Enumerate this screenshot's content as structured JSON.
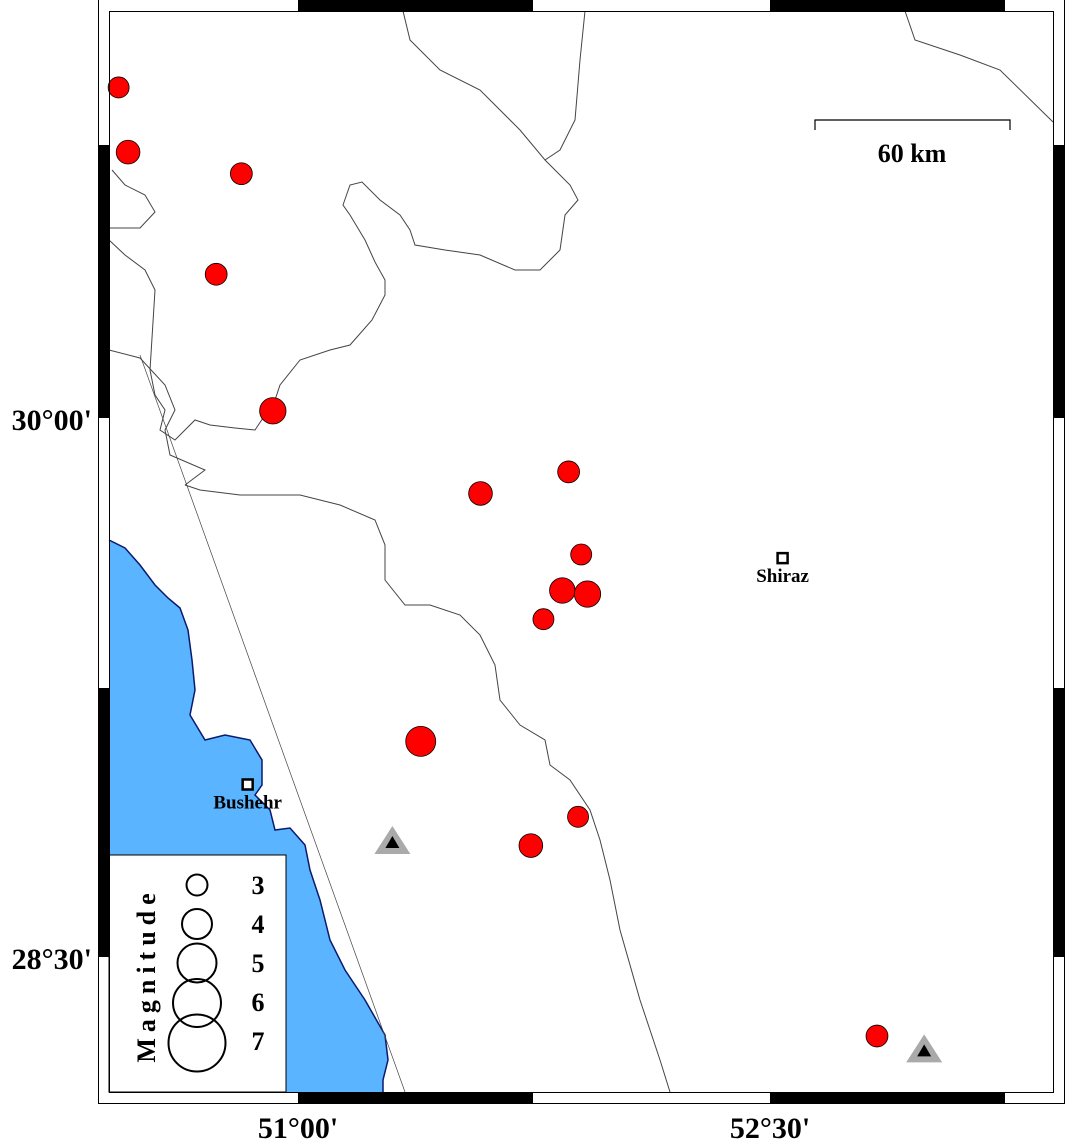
{
  "map": {
    "colors": {
      "sea": "#5ab4ff",
      "coast": "#0a1a6e",
      "event": "#ff0000",
      "station_outer": "#aaaaaa",
      "station_inner": "#000000",
      "border": "#444444"
    },
    "axis": {
      "lon_labels": [
        "51°00'",
        "52°30'"
      ],
      "lat_labels": [
        "30°00'",
        "28°30'"
      ]
    },
    "scale_bar": {
      "label": "60 km"
    },
    "cities": [
      {
        "name": "Shiraz",
        "lon": 52.54,
        "lat": 29.61
      },
      {
        "name": "Bushehr",
        "lon": 50.84,
        "lat": 28.98
      }
    ],
    "stations": [
      {
        "lon": 51.3,
        "lat": 28.82
      },
      {
        "lon": 52.99,
        "lat": 28.24
      }
    ],
    "events": [
      {
        "lon": 50.43,
        "lat": 30.92,
        "mag": 3.0
      },
      {
        "lon": 50.46,
        "lat": 30.74,
        "mag": 3.3
      },
      {
        "lon": 50.82,
        "lat": 30.68,
        "mag": 3.1
      },
      {
        "lon": 50.74,
        "lat": 30.4,
        "mag": 3.1
      },
      {
        "lon": 50.92,
        "lat": 30.02,
        "mag": 3.6
      },
      {
        "lon": 51.58,
        "lat": 29.79,
        "mag": 3.3
      },
      {
        "lon": 51.86,
        "lat": 29.85,
        "mag": 3.1
      },
      {
        "lon": 51.9,
        "lat": 29.62,
        "mag": 3.0
      },
      {
        "lon": 51.84,
        "lat": 29.52,
        "mag": 3.5
      },
      {
        "lon": 51.92,
        "lat": 29.51,
        "mag": 3.6
      },
      {
        "lon": 51.78,
        "lat": 29.44,
        "mag": 3.0
      },
      {
        "lon": 51.39,
        "lat": 29.1,
        "mag": 4.0
      },
      {
        "lon": 51.89,
        "lat": 28.89,
        "mag": 3.0
      },
      {
        "lon": 51.74,
        "lat": 28.81,
        "mag": 3.3
      },
      {
        "lon": 52.84,
        "lat": 28.28,
        "mag": 3.1
      }
    ],
    "legend": {
      "title": "Magnitude",
      "items": [
        {
          "mag": 3,
          "label": "3"
        },
        {
          "mag": 4,
          "label": "4"
        },
        {
          "mag": 5,
          "label": "5"
        },
        {
          "mag": 6,
          "label": "6"
        },
        {
          "mag": 7,
          "label": "7"
        }
      ]
    }
  }
}
